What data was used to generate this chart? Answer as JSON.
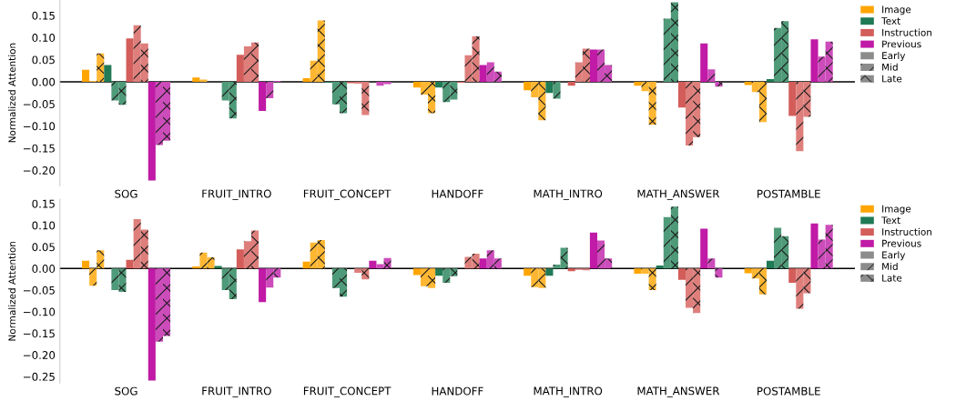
{
  "chart_data": [
    {
      "type": "bar",
      "ylabel": "Normalized Attention",
      "categories": [
        "SOG",
        "FRUIT_INTRO",
        "FRUIT_CONCEPT",
        "HANDOFF",
        "MATH_INTRO",
        "MATH_ANSWER",
        "POSTAMBLE"
      ],
      "ylim": [
        -0.235,
        0.185
      ],
      "yticks": [
        {
          "value": 0.15,
          "label": "0.15"
        },
        {
          "value": 0.1,
          "label": "0.10"
        },
        {
          "value": 0.05,
          "label": "0.05"
        },
        {
          "value": 0,
          "label": "0.00"
        },
        {
          "value": -0.05,
          "label": "−0.05"
        },
        {
          "value": -0.1,
          "label": "−0.10"
        },
        {
          "value": -0.15,
          "label": "−0.15"
        },
        {
          "value": -0.2,
          "label": "−0.20"
        }
      ],
      "ref_lines": [
        {
          "axis": "y",
          "value": 0,
          "color": "#000000"
        }
      ],
      "legend": "top right",
      "grid": false,
      "annotations": [
        "Early",
        "Mid",
        "Late"
      ],
      "series": [
        {
          "name": "Image",
          "color": "#ffa500",
          "values": [
            0.027,
            0.01,
            0.008,
            -0.013,
            -0.019,
            -0.009,
            -0.007
          ]
        },
        {
          "color": "#ffb733",
          "values": [
            0.002,
            0.005,
            0.048,
            -0.029,
            -0.035,
            -0.021,
            -0.023
          ]
        },
        {
          "color": "#ffb733",
          "values": [
            0.064,
            null,
            0.139,
            -0.071,
            -0.087,
            -0.097,
            -0.091
          ]
        },
        {
          "name": "Text",
          "color": "#1f7a55",
          "values": [
            0.038,
            0.0,
            -0.002,
            -0.013,
            -0.025,
            0.0,
            0.006
          ]
        },
        {
          "color": "#4f9a78",
          "values": [
            -0.042,
            -0.042,
            -0.051,
            -0.046,
            -0.038,
            0.143,
            0.122
          ]
        },
        {
          "color": "#4f9a78",
          "values": [
            -0.052,
            -0.083,
            -0.071,
            -0.04,
            0.0,
            0.18,
            0.137
          ]
        },
        {
          "name": "Instruction",
          "color": "#d35d5a",
          "values": [
            0.098,
            0.061,
            -0.003,
            -0.002,
            -0.009,
            -0.058,
            -0.077
          ]
        },
        {
          "color": "#de7f7c",
          "values": [
            0.128,
            0.08,
            -0.004,
            0.06,
            0.044,
            -0.144,
            -0.157
          ]
        },
        {
          "color": "#de7f7c",
          "values": [
            0.087,
            0.089,
            -0.075,
            0.103,
            0.075,
            -0.125,
            -0.079
          ]
        },
        {
          "name": "Previous",
          "color": "#c01aa6",
          "values": [
            -0.223,
            -0.066,
            0.0,
            0.038,
            0.073,
            0.087,
            0.096
          ]
        },
        {
          "color": "#cc4cba",
          "values": [
            -0.143,
            -0.037,
            -0.009,
            0.044,
            0.073,
            0.028,
            0.057
          ]
        },
        {
          "color": "#cc4cba",
          "values": [
            -0.133,
            0.002,
            -0.005,
            0.023,
            0.038,
            -0.011,
            0.091
          ]
        }
      ]
    },
    {
      "type": "bar",
      "ylabel": "Normalized Attention",
      "categories": [
        "SOG",
        "FRUIT_INTRO",
        "FRUIT_CONCEPT",
        "HANDOFF",
        "MATH_INTRO",
        "MATH_ANSWER",
        "POSTAMBLE"
      ],
      "ylim": [
        -0.265,
        0.16
      ],
      "yticks": [
        {
          "value": 0.15,
          "label": "0.15"
        },
        {
          "value": 0.1,
          "label": "0.10"
        },
        {
          "value": 0.05,
          "label": "0.05"
        },
        {
          "value": 0,
          "label": "0.00"
        },
        {
          "value": -0.05,
          "label": "−0.05"
        },
        {
          "value": -0.1,
          "label": "−0.10"
        },
        {
          "value": -0.15,
          "label": "−0.15"
        },
        {
          "value": -0.2,
          "label": "−0.20"
        },
        {
          "value": -0.25,
          "label": "−0.25"
        }
      ],
      "ref_lines": [
        {
          "axis": "y",
          "value": 0,
          "color": "#000000"
        }
      ],
      "legend": "top right",
      "grid": false,
      "annotations": [
        "Early",
        "Mid",
        "Late"
      ],
      "series": [
        {
          "name": "Image",
          "color": "#ffa500",
          "values": [
            0.018,
            0.005,
            0.016,
            -0.015,
            -0.017,
            -0.012,
            -0.011
          ]
        },
        {
          "color": "#ffb733",
          "values": [
            -0.04,
            0.037,
            0.06,
            -0.041,
            -0.043,
            -0.012,
            -0.023
          ]
        },
        {
          "color": "#ffb733",
          "values": [
            0.042,
            0.026,
            0.066,
            -0.045,
            -0.045,
            -0.05,
            -0.06
          ]
        },
        {
          "name": "Text",
          "color": "#1f7a55",
          "values": [
            0.0,
            0.006,
            0.0,
            -0.017,
            -0.017,
            0.007,
            0.018
          ]
        },
        {
          "color": "#4f9a78",
          "values": [
            -0.05,
            -0.05,
            -0.045,
            -0.033,
            0.009,
            0.119,
            0.094
          ]
        },
        {
          "color": "#4f9a78",
          "values": [
            -0.054,
            -0.071,
            -0.065,
            -0.018,
            0.048,
            0.143,
            0.075
          ]
        },
        {
          "name": "Instruction",
          "color": "#d35d5a",
          "values": [
            0.02,
            0.044,
            null,
            0.0,
            -0.006,
            -0.026,
            -0.033
          ]
        },
        {
          "color": "#de7f7c",
          "values": [
            0.114,
            0.063,
            -0.01,
            0.027,
            -0.003,
            -0.091,
            -0.093
          ]
        },
        {
          "color": "#de7f7c",
          "values": [
            0.09,
            0.088,
            -0.025,
            0.034,
            -0.004,
            -0.103,
            -0.057
          ]
        },
        {
          "name": "Previous",
          "color": "#c01aa6",
          "values": [
            -0.259,
            -0.078,
            0.018,
            0.023,
            0.083,
            0.092,
            0.104
          ]
        },
        {
          "color": "#cc4cba",
          "values": [
            -0.169,
            -0.044,
            0.01,
            0.042,
            0.065,
            0.023,
            0.067
          ]
        },
        {
          "color": "#cc4cba",
          "values": [
            -0.156,
            -0.021,
            0.024,
            0.023,
            0.023,
            -0.021,
            0.101
          ]
        }
      ]
    }
  ]
}
